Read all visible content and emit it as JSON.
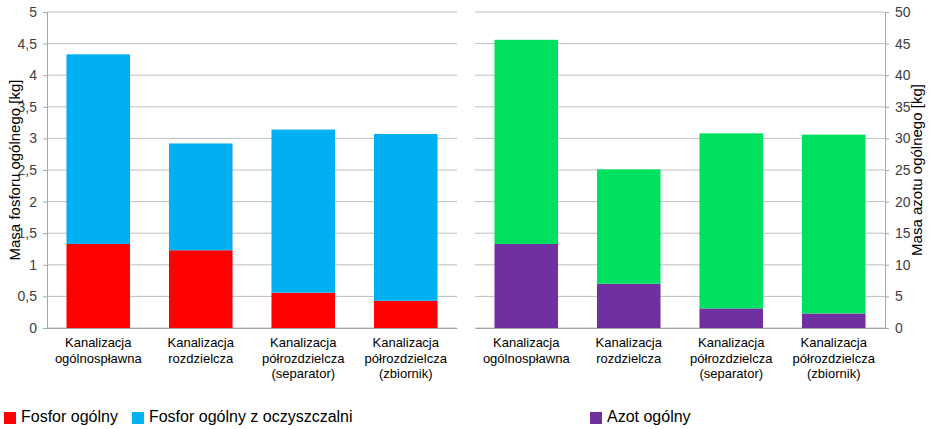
{
  "chart_data": [
    {
      "type": "bar",
      "stacked": true,
      "grid": true,
      "legend": "bottom",
      "y_label": "Masa fosforu ogólnego [kg]",
      "categories": [
        "Kanalizacja ogólnospławna",
        "Kanalizacja rozdzielcza",
        "Kanalizacja półrozdzielcza (separator)",
        "Kanalizacja półrozdzielcza (zbiornik)"
      ],
      "series": [
        {
          "name": "Fosfor ogólny",
          "color": "#ff0000",
          "values": [
            1.33,
            1.23,
            0.56,
            0.43
          ]
        },
        {
          "name": "Fosfor ogólny z oczyszczalni",
          "color": "#00b0f0",
          "values": [
            3.0,
            1.69,
            2.58,
            2.64
          ]
        }
      ],
      "ylim": [
        0,
        5
      ],
      "yticks": [
        0,
        {
          "value": 0.5,
          "label": "0,5"
        },
        1,
        {
          "value": 1.5,
          "label": "1,5"
        },
        2,
        {
          "value": 2.5,
          "label": "2,5"
        },
        3,
        {
          "value": 3.5,
          "label": "3,5"
        },
        4,
        {
          "value": 4.5,
          "label": "4,5"
        },
        5
      ]
    },
    {
      "type": "bar",
      "stacked": true,
      "grid": true,
      "legend": "bottom",
      "y_label": "Masa azotu ogólnego [kg]",
      "categories": [
        "Kanalizacja ogólnospławna",
        "Kanalizacja rozdzielcza",
        "Kanalizacja półrozdzielcza (separator)",
        "Kanalizacja półrozdzielcza (zbiornik)"
      ],
      "series": [
        {
          "name": "Azot ogólny",
          "color": "#7030a0",
          "values": [
            13.3,
            7.0,
            3.1,
            2.3
          ]
        },
        {
          "color": "#00e060",
          "values": [
            32.3,
            18.1,
            27.7,
            28.3
          ]
        }
      ],
      "ylim": [
        0,
        50
      ],
      "yticks": [
        0,
        5,
        10,
        15,
        20,
        25,
        30,
        35,
        40,
        45,
        50
      ]
    }
  ]
}
